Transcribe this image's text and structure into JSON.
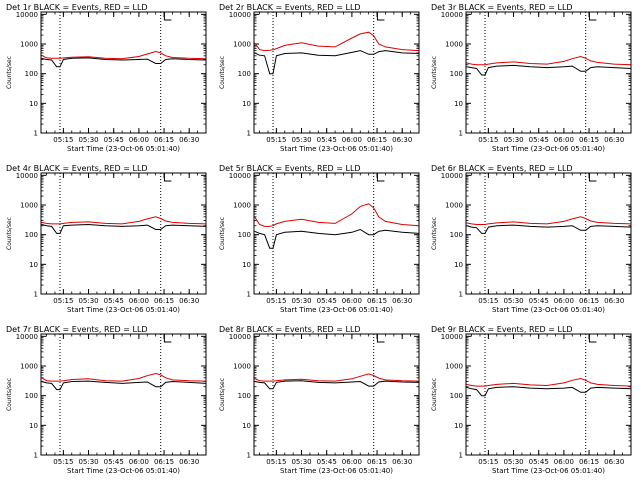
{
  "colors": {
    "events": "#000000",
    "lld": "#dd0000",
    "axes": "#000000",
    "background": "#ffffff"
  },
  "shared": {
    "ylabel": "Counts/sec",
    "xlabel": "Start Time (23-Oct-06 05:01:40)",
    "xticks": [
      "05:15",
      "05:30",
      "05:45",
      "06:00",
      "06:15",
      "06:30"
    ],
    "yticks": [
      "1",
      "10",
      "100",
      "1000",
      "10000"
    ]
  },
  "chart_data": [
    {
      "type": "line",
      "title": "Det 1r BLACK = Events, RED = LLD",
      "yscale": "log",
      "ylim": [
        1,
        12000
      ],
      "xlim": [
        "05:01:40",
        "06:40:00"
      ],
      "markers": [
        "05:13",
        "06:13"
      ],
      "bracket": "06:17",
      "x": [
        "05:02",
        "05:05",
        "05:08",
        "05:11",
        "05:13",
        "05:15",
        "05:20",
        "05:30",
        "05:40",
        "05:50",
        "06:00",
        "06:05",
        "06:10",
        "06:13",
        "06:16",
        "06:20",
        "06:30",
        "06:40"
      ],
      "series": [
        {
          "name": "Events",
          "values": [
            330,
            300,
            290,
            170,
            170,
            300,
            330,
            340,
            300,
            290,
            300,
            310,
            220,
            220,
            300,
            320,
            300,
            290
          ]
        },
        {
          "name": "LLD",
          "values": [
            420,
            340,
            330,
            330,
            330,
            340,
            360,
            370,
            330,
            320,
            380,
            460,
            560,
            500,
            400,
            350,
            330,
            320
          ]
        }
      ]
    },
    {
      "type": "line",
      "title": "Det 2r BLACK = Events, RED = LLD",
      "yscale": "log",
      "ylim": [
        1,
        12000
      ],
      "xlim": [
        "05:01:40",
        "06:40:00"
      ],
      "markers": [
        "05:13",
        "06:13"
      ],
      "bracket": "06:17",
      "x": [
        "05:02",
        "05:05",
        "05:08",
        "05:11",
        "05:13",
        "05:15",
        "05:20",
        "05:30",
        "05:40",
        "05:50",
        "06:00",
        "06:05",
        "06:10",
        "06:13",
        "06:16",
        "06:20",
        "06:30",
        "06:40"
      ],
      "series": [
        {
          "name": "Events",
          "values": [
            500,
            420,
            400,
            100,
            100,
            400,
            480,
            500,
            420,
            400,
            520,
            600,
            450,
            450,
            550,
            600,
            500,
            480
          ]
        },
        {
          "name": "LLD",
          "values": [
            1100,
            650,
            600,
            620,
            640,
            700,
            900,
            1100,
            850,
            800,
            1600,
            2200,
            2500,
            1900,
            1000,
            800,
            650,
            600
          ]
        }
      ]
    },
    {
      "type": "line",
      "title": "Det 3r BLACK = Events, RED = LLD",
      "yscale": "log",
      "ylim": [
        1,
        12000
      ],
      "xlim": [
        "05:01:40",
        "06:40:00"
      ],
      "markers": [
        "05:13",
        "06:13"
      ],
      "bracket": "06:17",
      "x": [
        "05:02",
        "05:05",
        "05:08",
        "05:11",
        "05:13",
        "05:15",
        "05:20",
        "05:30",
        "05:40",
        "05:50",
        "06:00",
        "06:05",
        "06:10",
        "06:13",
        "06:16",
        "06:20",
        "06:30",
        "06:40"
      ],
      "series": [
        {
          "name": "Events",
          "values": [
            170,
            160,
            150,
            90,
            90,
            160,
            180,
            190,
            170,
            160,
            170,
            180,
            120,
            120,
            160,
            170,
            160,
            150
          ]
        },
        {
          "name": "LLD",
          "values": [
            230,
            210,
            200,
            200,
            200,
            210,
            230,
            250,
            220,
            210,
            260,
            320,
            380,
            330,
            270,
            240,
            210,
            200
          ]
        }
      ]
    },
    {
      "type": "line",
      "title": "Det 4r BLACK = Events, RED = LLD",
      "yscale": "log",
      "ylim": [
        1,
        12000
      ],
      "xlim": [
        "05:01:40",
        "06:40:00"
      ],
      "markers": [
        "05:13",
        "06:13"
      ],
      "bracket": "06:17",
      "x": [
        "05:02",
        "05:05",
        "05:08",
        "05:11",
        "05:13",
        "05:15",
        "05:20",
        "05:30",
        "05:40",
        "05:50",
        "06:00",
        "06:05",
        "06:10",
        "06:13",
        "06:16",
        "06:20",
        "06:30",
        "06:40"
      ],
      "series": [
        {
          "name": "Events",
          "values": [
            220,
            200,
            190,
            110,
            110,
            200,
            210,
            220,
            200,
            190,
            200,
            210,
            150,
            150,
            200,
            210,
            200,
            190
          ]
        },
        {
          "name": "LLD",
          "values": [
            260,
            240,
            230,
            230,
            230,
            240,
            260,
            270,
            240,
            230,
            280,
            340,
            400,
            350,
            290,
            260,
            240,
            230
          ]
        }
      ]
    },
    {
      "type": "line",
      "title": "Det 5r BLACK = Events, RED = LLD",
      "yscale": "log",
      "ylim": [
        1,
        12000
      ],
      "xlim": [
        "05:01:40",
        "06:40:00"
      ],
      "markers": [
        "05:13",
        "06:13"
      ],
      "bracket": "06:17",
      "x": [
        "05:02",
        "05:05",
        "05:08",
        "05:11",
        "05:13",
        "05:15",
        "05:20",
        "05:30",
        "05:40",
        "05:50",
        "06:00",
        "06:05",
        "06:10",
        "06:13",
        "06:16",
        "06:20",
        "06:30",
        "06:40"
      ],
      "series": [
        {
          "name": "Events",
          "values": [
            130,
            110,
            100,
            35,
            35,
            100,
            120,
            130,
            110,
            100,
            120,
            150,
            100,
            100,
            130,
            140,
            120,
            110
          ]
        },
        {
          "name": "LLD",
          "values": [
            400,
            220,
            190,
            190,
            200,
            230,
            280,
            330,
            260,
            240,
            500,
            900,
            1100,
            800,
            400,
            280,
            220,
            200
          ]
        }
      ]
    },
    {
      "type": "line",
      "title": "Det 6r BLACK = Events, RED = LLD",
      "yscale": "log",
      "ylim": [
        1,
        12000
      ],
      "xlim": [
        "05:01:40",
        "06:40:00"
      ],
      "markers": [
        "05:13",
        "06:13"
      ],
      "bracket": "06:17",
      "x": [
        "05:02",
        "05:05",
        "05:08",
        "05:11",
        "05:13",
        "05:15",
        "05:20",
        "05:30",
        "05:40",
        "05:50",
        "06:00",
        "06:05",
        "06:10",
        "06:13",
        "06:16",
        "06:20",
        "06:30",
        "06:40"
      ],
      "series": [
        {
          "name": "Events",
          "values": [
            200,
            180,
            170,
            110,
            110,
            180,
            200,
            210,
            190,
            180,
            190,
            200,
            140,
            140,
            190,
            200,
            190,
            180
          ]
        },
        {
          "name": "LLD",
          "values": [
            250,
            230,
            220,
            220,
            220,
            230,
            250,
            270,
            240,
            230,
            280,
            340,
            400,
            350,
            290,
            260,
            240,
            230
          ]
        }
      ]
    },
    {
      "type": "line",
      "title": "Det 7r BLACK = Events, RED = LLD",
      "yscale": "log",
      "ylim": [
        1,
        12000
      ],
      "xlim": [
        "05:01:40",
        "06:40:00"
      ],
      "markers": [
        "05:13",
        "06:13"
      ],
      "bracket": "06:17",
      "x": [
        "05:02",
        "05:05",
        "05:08",
        "05:11",
        "05:13",
        "05:15",
        "05:20",
        "05:30",
        "05:40",
        "05:50",
        "06:00",
        "06:05",
        "06:10",
        "06:13",
        "06:16",
        "06:20",
        "06:30",
        "06:40"
      ],
      "series": [
        {
          "name": "Events",
          "values": [
            300,
            270,
            260,
            160,
            160,
            270,
            300,
            310,
            280,
            260,
            280,
            290,
            200,
            200,
            280,
            300,
            280,
            260
          ]
        },
        {
          "name": "LLD",
          "values": [
            400,
            320,
            310,
            310,
            310,
            320,
            350,
            370,
            320,
            310,
            380,
            470,
            560,
            500,
            400,
            340,
            320,
            310
          ]
        }
      ]
    },
    {
      "type": "line",
      "title": "Det 8r BLACK = Events, RED = LLD",
      "yscale": "log",
      "ylim": [
        1,
        12000
      ],
      "xlim": [
        "05:01:40",
        "06:40:00"
      ],
      "markers": [
        "05:13",
        "06:13"
      ],
      "bracket": "06:17",
      "x": [
        "05:02",
        "05:05",
        "05:08",
        "05:11",
        "05:13",
        "05:15",
        "05:20",
        "05:30",
        "05:40",
        "05:50",
        "06:00",
        "06:05",
        "06:10",
        "06:13",
        "06:16",
        "06:20",
        "06:30",
        "06:40"
      ],
      "series": [
        {
          "name": "Events",
          "values": [
            300,
            280,
            270,
            170,
            170,
            280,
            310,
            320,
            280,
            270,
            290,
            300,
            210,
            210,
            290,
            310,
            290,
            280
          ]
        },
        {
          "name": "LLD",
          "values": [
            380,
            320,
            310,
            310,
            310,
            320,
            340,
            360,
            320,
            310,
            370,
            450,
            540,
            480,
            390,
            340,
            320,
            310
          ]
        }
      ]
    },
    {
      "type": "line",
      "title": "Det 9r BLACK = Events, RED = LLD",
      "yscale": "log",
      "ylim": [
        1,
        12000
      ],
      "xlim": [
        "05:01:40",
        "06:40:00"
      ],
      "markers": [
        "05:13",
        "06:13"
      ],
      "bracket": "06:17",
      "x": [
        "05:02",
        "05:05",
        "05:08",
        "05:11",
        "05:13",
        "05:15",
        "05:20",
        "05:30",
        "05:40",
        "05:50",
        "06:00",
        "06:05",
        "06:10",
        "06:13",
        "06:16",
        "06:20",
        "06:30",
        "06:40"
      ],
      "series": [
        {
          "name": "Events",
          "values": [
            190,
            170,
            160,
            100,
            100,
            170,
            190,
            200,
            180,
            170,
            180,
            190,
            130,
            130,
            180,
            190,
            180,
            170
          ]
        },
        {
          "name": "LLD",
          "values": [
            240,
            220,
            210,
            210,
            210,
            220,
            240,
            260,
            230,
            220,
            270,
            330,
            380,
            330,
            270,
            240,
            220,
            210
          ]
        }
      ]
    }
  ]
}
